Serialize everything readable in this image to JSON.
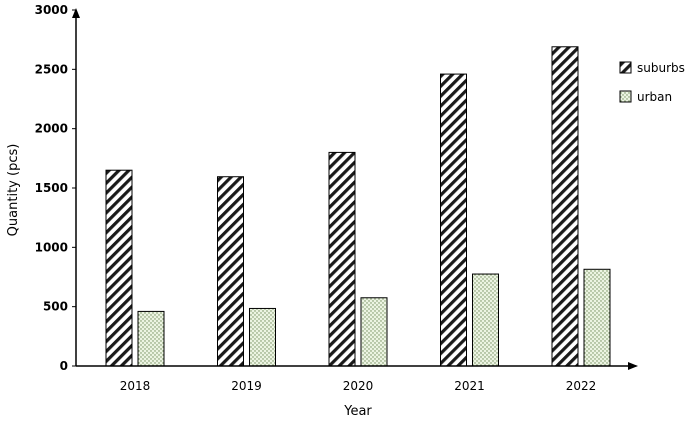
{
  "chart_data": {
    "type": "bar",
    "categories": [
      "2018",
      "2019",
      "2020",
      "2021",
      "2022"
    ],
    "series": [
      {
        "name": "suburbs",
        "values": [
          1650,
          1595,
          1800,
          2460,
          2690
        ],
        "pattern": "diagonal-hatch",
        "color": "#000000"
      },
      {
        "name": "urban",
        "values": [
          460,
          485,
          575,
          775,
          815
        ],
        "pattern": "dots",
        "color": "#e6f0d8"
      }
    ],
    "title": "",
    "xlabel": "Year",
    "ylabel": "Quantity (pcs)",
    "ylim": [
      0,
      3000
    ],
    "yticks": [
      "0",
      "500",
      "1000",
      "1500",
      "2000",
      "2500",
      "3000"
    ],
    "grid": false,
    "legend_position": "right"
  }
}
